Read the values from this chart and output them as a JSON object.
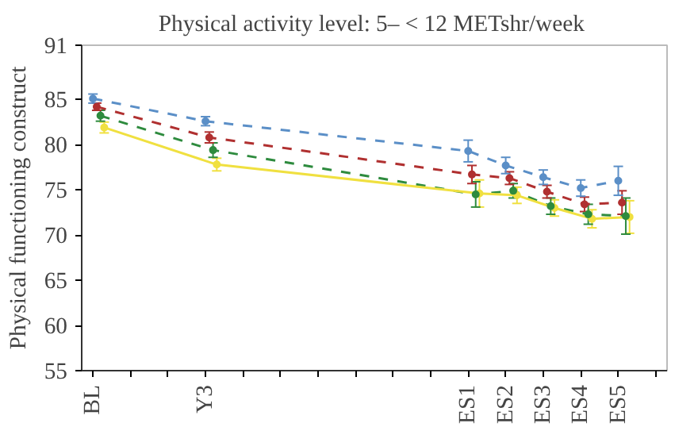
{
  "chart_data": {
    "type": "line",
    "title": "Physical activity level:  5– < 12 METshr/week",
    "ylabel": "Physical functioning construct",
    "categories": [
      "BL",
      null,
      null,
      "Y3",
      null,
      null,
      null,
      null,
      null,
      null,
      "ES1",
      "ES2",
      "ES3",
      "ES4",
      "ES5",
      null
    ],
    "ylim": [
      55,
      91
    ],
    "yticks": [
      55,
      60,
      65,
      70,
      75,
      80,
      85,
      91
    ],
    "grid": false,
    "marker": "circle",
    "series": [
      {
        "color": "#5b8fc7",
        "line_style": "dashed",
        "values": [
          85.1,
          null,
          null,
          82.6,
          null,
          null,
          null,
          null,
          null,
          null,
          79.3,
          77.7,
          76.4,
          75.2,
          76.0,
          null
        ],
        "errors": [
          0.5,
          null,
          null,
          0.5,
          null,
          null,
          null,
          null,
          null,
          null,
          1.2,
          0.9,
          0.8,
          0.9,
          1.6,
          null
        ]
      },
      {
        "color": "#b03030",
        "line_style": "dashed",
        "values": [
          84.2,
          null,
          null,
          80.8,
          null,
          null,
          null,
          null,
          null,
          null,
          76.7,
          76.3,
          74.8,
          73.4,
          73.6,
          null
        ],
        "errors": [
          0.4,
          null,
          null,
          0.6,
          null,
          null,
          null,
          null,
          null,
          null,
          1.0,
          0.7,
          0.7,
          0.8,
          1.3,
          null
        ]
      },
      {
        "color": "#2e8b3e",
        "line_style": "dashed",
        "values": [
          83.2,
          null,
          null,
          79.4,
          null,
          null,
          null,
          null,
          null,
          null,
          74.5,
          74.9,
          73.2,
          72.3,
          72.1,
          null
        ],
        "errors": [
          0.6,
          null,
          null,
          0.8,
          null,
          null,
          null,
          null,
          null,
          null,
          1.4,
          0.8,
          0.9,
          1.1,
          2.0,
          null
        ]
      },
      {
        "color": "#f0e040",
        "line_style": "solid",
        "values": [
          81.9,
          null,
          null,
          77.8,
          null,
          null,
          null,
          null,
          null,
          null,
          74.6,
          74.4,
          73.0,
          71.8,
          72.0,
          null
        ],
        "errors": [
          0.6,
          null,
          null,
          0.7,
          null,
          null,
          null,
          null,
          null,
          null,
          1.5,
          0.9,
          0.9,
          1.0,
          1.8,
          null
        ]
      }
    ]
  }
}
